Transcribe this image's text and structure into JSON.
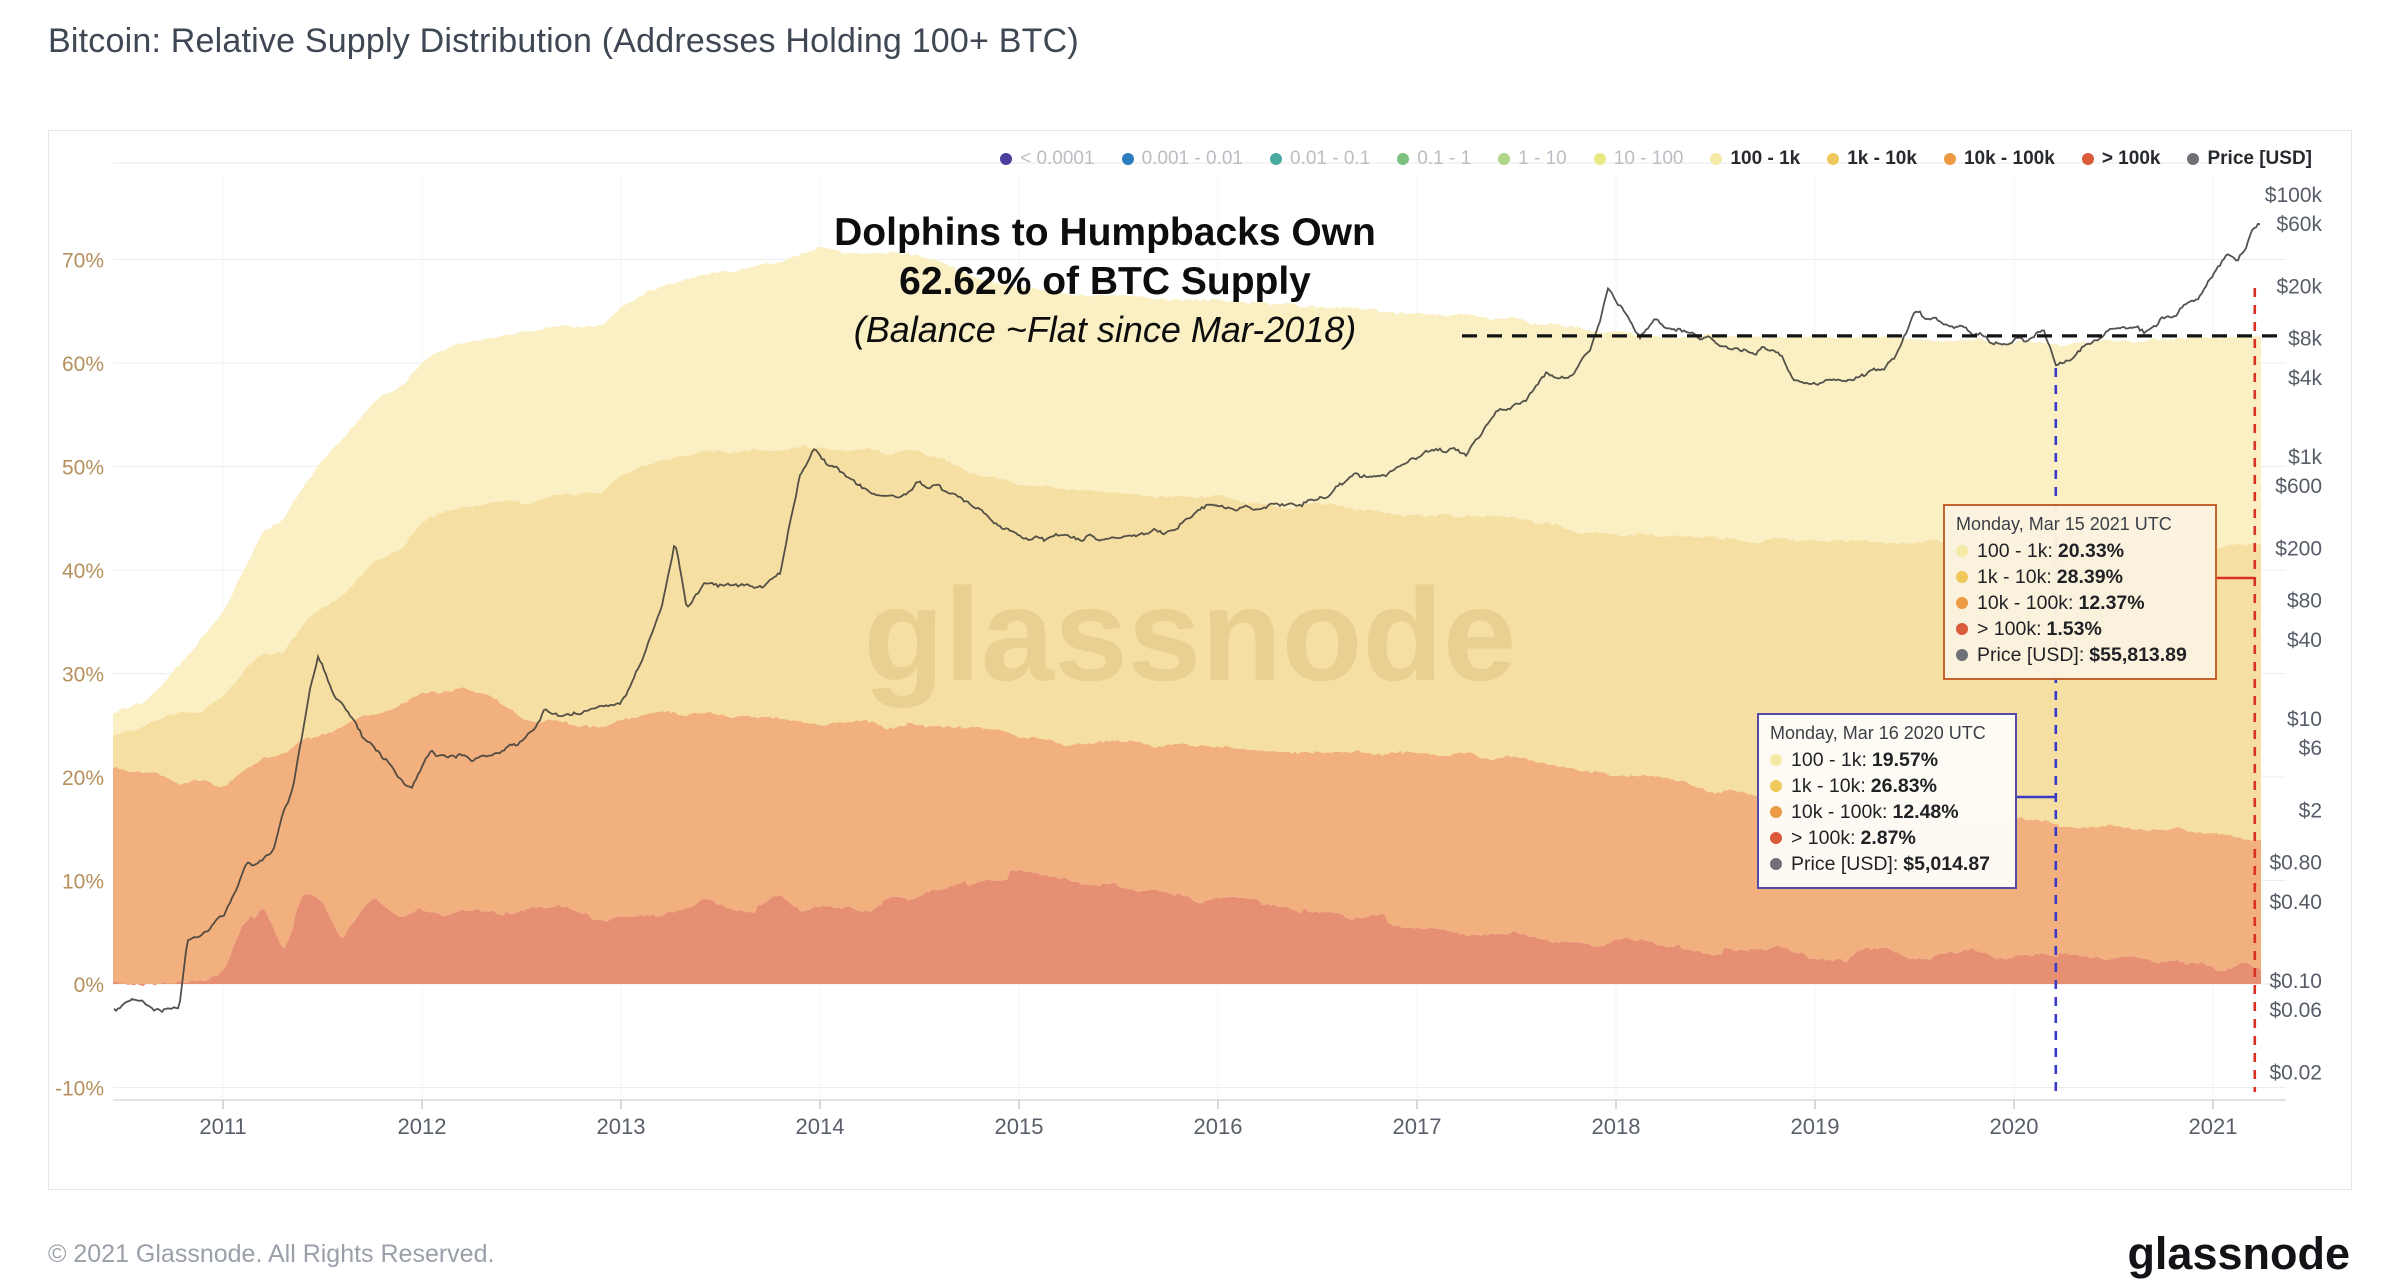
{
  "page": {
    "title": "Bitcoin: Relative Supply Distribution (Addresses Holding 100+ BTC)",
    "footer_copyright": "© 2021 Glassnode. All Rights Reserved.",
    "brand_wordmark": "glassnode",
    "watermark": "glassnode"
  },
  "legend": {
    "items": [
      {
        "label": "< 0.0001",
        "color": "#4a3f9e",
        "active": false
      },
      {
        "label": "0.001 - 0.01",
        "color": "#2d7bbf",
        "active": false
      },
      {
        "label": "0.01 - 0.1",
        "color": "#4aaaa2",
        "active": false
      },
      {
        "label": "0.1 - 1",
        "color": "#7cc17e",
        "active": false
      },
      {
        "label": "1 - 10",
        "color": "#aed687",
        "active": false
      },
      {
        "label": "10 - 100",
        "color": "#e7ea83",
        "active": false
      },
      {
        "label": "100 - 1k",
        "color": "#f4e9a6",
        "active": true
      },
      {
        "label": "1k - 10k",
        "color": "#f0c75a",
        "active": true
      },
      {
        "label": "10k - 100k",
        "color": "#ec9a44",
        "active": true
      },
      {
        "label": "> 100k",
        "color": "#d95b3a",
        "active": true
      },
      {
        "label": "Price [USD]",
        "color": "#6e7075",
        "active": true
      }
    ]
  },
  "annotation": {
    "line1": "Dolphins to Humpbacks Own",
    "line2": "62.62% of BTC Supply",
    "line3": "(Balance ~Flat since Mar-2018)"
  },
  "tooltips": [
    {
      "id": "tooltip-2021",
      "date": "Monday, Mar 15 2021 UTC",
      "border_color": "#c4632f",
      "rows": [
        {
          "label": "100 - 1k",
          "value": "20.33%",
          "color": "#f4e9a6"
        },
        {
          "label": "1k - 10k",
          "value": "28.39%",
          "color": "#f0c75a"
        },
        {
          "label": "10k - 100k",
          "value": "12.37%",
          "color": "#ec9a44"
        },
        {
          "label": "> 100k",
          "value": "1.53%",
          "color": "#d95b3a"
        },
        {
          "label": "Price [USD]",
          "value": "$55,813.89",
          "color": "#6e7075"
        }
      ]
    },
    {
      "id": "tooltip-2020",
      "date": "Monday, Mar 16 2020 UTC",
      "border_color": "#544aa8",
      "rows": [
        {
          "label": "100 - 1k",
          "value": "19.57%",
          "color": "#f4e9a6"
        },
        {
          "label": "1k - 10k",
          "value": "26.83%",
          "color": "#f0c75a"
        },
        {
          "label": "10k - 100k",
          "value": "12.48%",
          "color": "#ec9a44"
        },
        {
          "label": "> 100k",
          "value": "2.87%",
          "color": "#d95b3a"
        },
        {
          "label": "Price [USD]",
          "value": "$5,014.87",
          "color": "#6e7075"
        }
      ]
    }
  ],
  "chart_data": {
    "type": "area",
    "title": "Bitcoin: Relative Supply Distribution (Addresses Holding 100+ BTC)",
    "stacking": "percent_of_supply",
    "grid": true,
    "legend_position": "top-right",
    "x_years": [
      2010.45,
      2010.6,
      2010.8,
      2011.0,
      2011.1,
      2011.2,
      2011.3,
      2011.4,
      2011.5,
      2011.6,
      2011.75,
      2011.9,
      2012.0,
      2012.2,
      2012.35,
      2012.5,
      2012.7,
      2012.9,
      2013.0,
      2013.2,
      2013.4,
      2013.6,
      2013.8,
      2014.0,
      2014.2,
      2014.4,
      2014.6,
      2014.8,
      2015.0,
      2015.25,
      2015.5,
      2015.75,
      2016.0,
      2016.3,
      2016.6,
      2016.9,
      2017.2,
      2017.5,
      2017.8,
      2018.0,
      2018.25,
      2018.5,
      2018.75,
      2019.0,
      2019.25,
      2019.5,
      2019.75,
      2020.0,
      2020.21,
      2020.4,
      2020.6,
      2020.8,
      2021.0,
      2021.24
    ],
    "series": [
      {
        "name": "> 100k",
        "fill_color": "#e68f72",
        "values": [
          0.3,
          0.3,
          0.6,
          1.2,
          5.5,
          7.6,
          4.0,
          8.0,
          7.4,
          4.2,
          7.6,
          6.8,
          7.0,
          7.1,
          7.4,
          7.0,
          7.3,
          6.2,
          6.2,
          6.5,
          8.2,
          7.4,
          8.0,
          7.3,
          7.6,
          8.0,
          8.6,
          10.4,
          10.8,
          9.6,
          9.0,
          8.4,
          8.0,
          7.8,
          6.4,
          6.2,
          5.4,
          4.6,
          4.1,
          3.8,
          3.6,
          3.4,
          3.3,
          3.1,
          3.0,
          2.9,
          2.9,
          2.9,
          2.87,
          2.7,
          2.4,
          2.2,
          1.9,
          1.53
        ]
      },
      {
        "name": "10k - 100k",
        "fill_color": "#f2b07e",
        "values": [
          20.5,
          20.0,
          19.0,
          17.8,
          15.0,
          14.0,
          18.0,
          15.5,
          16.5,
          20.5,
          18.5,
          20.0,
          21.0,
          21.5,
          20.0,
          18.5,
          18.0,
          18.5,
          19.0,
          19.5,
          18.0,
          18.5,
          17.5,
          18.0,
          17.5,
          17.0,
          16.5,
          14.0,
          13.2,
          13.6,
          14.4,
          14.8,
          15.0,
          15.0,
          15.8,
          16.2,
          16.8,
          17.2,
          16.9,
          16.6,
          16.0,
          15.2,
          14.6,
          14.4,
          14.0,
          13.7,
          13.2,
          12.9,
          12.48,
          12.6,
          12.6,
          12.5,
          12.5,
          12.37
        ]
      },
      {
        "name": "1k - 10k",
        "fill_color": "#f6dfa2",
        "values": [
          3.5,
          4.5,
          6.5,
          8.5,
          9.5,
          10.5,
          10.0,
          11.0,
          12.5,
          13.0,
          14.5,
          15.5,
          16.5,
          17.5,
          19.0,
          21.0,
          22.0,
          23.0,
          24.0,
          24.5,
          25.0,
          25.5,
          26.0,
          26.5,
          26.5,
          26.5,
          26.0,
          25.0,
          24.5,
          24.2,
          24.0,
          24.0,
          24.0,
          23.5,
          24.0,
          23.2,
          22.8,
          23.0,
          22.8,
          23.2,
          23.6,
          24.4,
          25.0,
          25.4,
          25.8,
          26.2,
          26.4,
          26.5,
          26.83,
          26.9,
          27.0,
          27.3,
          27.9,
          28.39
        ]
      },
      {
        "name": "100 - 1k",
        "fill_color": "#faf0c4",
        "values": [
          1.8,
          2.5,
          5.0,
          8.5,
          10.0,
          11.5,
          12.5,
          13.5,
          14.5,
          15.0,
          15.5,
          15.5,
          15.5,
          15.8,
          16.2,
          16.5,
          16.3,
          15.8,
          16.3,
          17.0,
          17.3,
          17.6,
          18.5,
          19.2,
          19.0,
          18.9,
          18.8,
          18.8,
          19.0,
          19.1,
          19.1,
          19.0,
          19.0,
          19.2,
          19.3,
          19.4,
          19.6,
          19.4,
          19.5,
          19.3,
          19.4,
          19.6,
          19.6,
          19.6,
          19.7,
          19.6,
          19.7,
          19.7,
          19.57,
          19.8,
          20.0,
          20.1,
          20.2,
          20.33
        ]
      }
    ],
    "price_series": {
      "name": "Price [USD]",
      "color": "#45433e",
      "scale": "log",
      "x": [
        2010.45,
        2010.55,
        2010.65,
        2010.78,
        2010.82,
        2010.9,
        2011.0,
        2011.12,
        2011.25,
        2011.35,
        2011.44,
        2011.48,
        2011.55,
        2011.65,
        2011.8,
        2011.95,
        2012.05,
        2012.2,
        2012.35,
        2012.5,
        2012.62,
        2012.7,
        2012.85,
        2013.0,
        2013.1,
        2013.2,
        2013.27,
        2013.33,
        2013.42,
        2013.55,
        2013.7,
        2013.8,
        2013.9,
        2013.97,
        2014.05,
        2014.2,
        2014.35,
        2014.5,
        2014.65,
        2014.8,
        2015.05,
        2015.2,
        2015.4,
        2015.6,
        2015.8,
        2015.95,
        2016.1,
        2016.3,
        2016.5,
        2016.65,
        2016.85,
        2017.0,
        2017.17,
        2017.25,
        2017.4,
        2017.55,
        2017.65,
        2017.75,
        2017.87,
        2017.96,
        2018.05,
        2018.12,
        2018.2,
        2018.35,
        2018.5,
        2018.65,
        2018.8,
        2018.9,
        2018.96,
        2019.1,
        2019.25,
        2019.4,
        2019.5,
        2019.6,
        2019.75,
        2019.9,
        2020.05,
        2020.15,
        2020.21,
        2020.35,
        2020.5,
        2020.65,
        2020.8,
        2020.9,
        2021.0,
        2021.07,
        2021.12,
        2021.16,
        2021.2,
        2021.24
      ],
      "values": [
        0.06,
        0.07,
        0.06,
        0.06,
        0.2,
        0.24,
        0.3,
        0.75,
        1.0,
        3.0,
        17,
        30,
        15,
        9.5,
        4.8,
        3.0,
        5.5,
        5.0,
        5.1,
        6.6,
        11,
        10,
        12.5,
        13.4,
        25,
        65,
        230,
        70,
        115,
        97,
        105,
        135,
        700,
        1130,
        820,
        620,
        460,
        610,
        560,
        370,
        220,
        245,
        235,
        255,
        280,
        430,
        395,
        420,
        455,
        670,
        720,
        990,
        1150,
        1000,
        2300,
        2550,
        4300,
        3900,
        6200,
        19000,
        13000,
        8300,
        10800,
        8600,
        7400,
        6300,
        6450,
        3900,
        3750,
        3650,
        4050,
        5500,
        12000,
        10800,
        9200,
        7400,
        7600,
        9800,
        5014.87,
        6700,
        9150,
        9200,
        11800,
        14500,
        23000,
        33500,
        31500,
        38500,
        55813.89,
        59000
      ]
    },
    "y_left": {
      "title": "",
      "ticks": [
        70,
        60,
        50,
        40,
        30,
        20,
        10,
        0,
        -10
      ],
      "labels": [
        "70%",
        "60%",
        "50%",
        "40%",
        "30%",
        "20%",
        "10%",
        "0%",
        "-10%"
      ],
      "color": "#b5905c"
    },
    "y_right": {
      "title": "Price [USD]",
      "scale": "log",
      "ticks": [
        100000,
        60000,
        20000,
        8000,
        4000,
        1000,
        600,
        200,
        80,
        40,
        10,
        6,
        2,
        0.8,
        0.4,
        0.1,
        0.06,
        0.02
      ],
      "labels": [
        "$100k",
        "$60k",
        "$20k",
        "$8k",
        "$4k",
        "$1k",
        "$600",
        "$200",
        "$80",
        "$40",
        "$10",
        "$6",
        "$2",
        "$0.80",
        "$0.40",
        "$0.10",
        "$0.06",
        "$0.02"
      ],
      "color": "#565d68"
    },
    "x_ticks": {
      "values": [
        2011,
        2012,
        2013,
        2014,
        2015,
        2016,
        2017,
        2018,
        2019,
        2020,
        2021
      ],
      "labels": [
        "2011",
        "2012",
        "2013",
        "2014",
        "2015",
        "2016",
        "2017",
        "2018",
        "2019",
        "2020",
        "2021"
      ]
    },
    "reference_lines": {
      "flat_level_pct": 62.62,
      "flat_line_color": "#141414",
      "marker_2020_year": 2020.21,
      "marker_2020_color": "#3a3ac8",
      "marker_2021_year": 2021.21,
      "marker_2021_color": "#d93025"
    }
  }
}
